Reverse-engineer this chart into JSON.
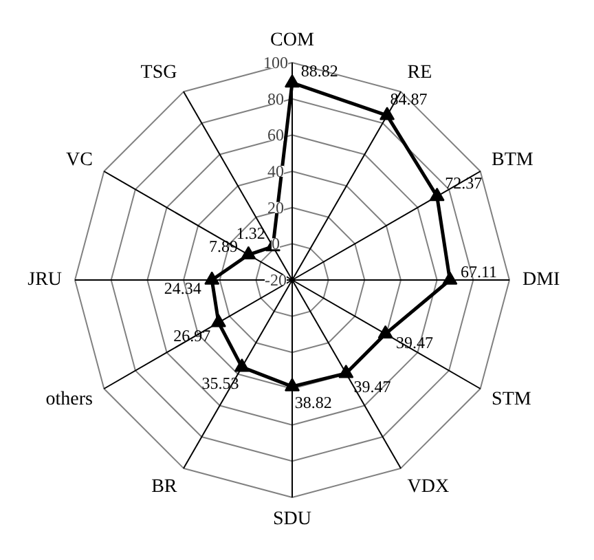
{
  "chart_data": {
    "type": "radar",
    "categories": [
      "COM",
      "RE",
      "BTM",
      "DMI",
      "STM",
      "VDX",
      "SDU",
      "BR",
      "others",
      "JRU",
      "VC",
      "TSG"
    ],
    "series": [
      {
        "color": "#000000",
        "values": [
          88.82,
          84.87,
          72.37,
          67.11,
          39.47,
          39.47,
          38.82,
          35.53,
          26.97,
          24.34,
          7.89,
          1.32
        ]
      }
    ],
    "ylim": [
      -20,
      100
    ],
    "yticks": [
      -20,
      0,
      20,
      40,
      60,
      80,
      100
    ],
    "grid": true,
    "data_labels": true,
    "marker": "triangle",
    "line_style": "solid"
  }
}
